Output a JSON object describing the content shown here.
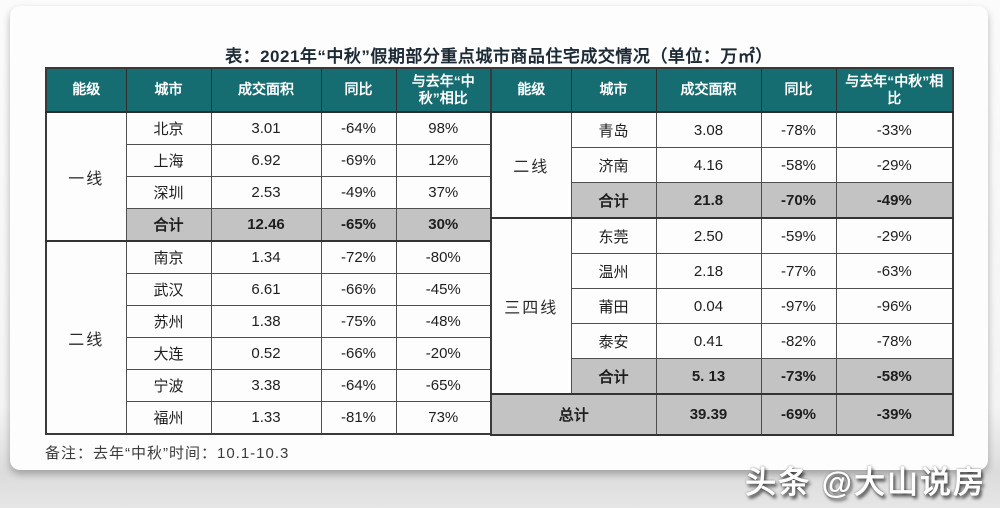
{
  "page": {
    "title": "表：2021年“中秋”假期部分重点城市商品住宅成交情况（单位：万㎡）",
    "note": "备注：去年“中秋”时间：10.1-10.3",
    "watermark": "头条 @大山说房"
  },
  "colors": {
    "header_bg": "#156d72",
    "header_text": "#ffffff",
    "total_row_bg": "#c3c3c3",
    "border": "#4f4f4f"
  },
  "table": {
    "headers": [
      "能级",
      "城市",
      "成交面积",
      "同比",
      "与去年“中秋”相比"
    ],
    "left_rows": [
      {
        "tier": "一线",
        "tier_rowspan": 4,
        "city": "北京",
        "area": "3.01",
        "yoy": "-64%",
        "vs": "98%",
        "total": false
      },
      {
        "city": "上海",
        "area": "6.92",
        "yoy": "-69%",
        "vs": "12%",
        "total": false
      },
      {
        "city": "深圳",
        "area": "2.53",
        "yoy": "-49%",
        "vs": "37%",
        "total": false
      },
      {
        "city": "合计",
        "area": "12.46",
        "yoy": "-65%",
        "vs": "30%",
        "total": true
      },
      {
        "tier": "二线",
        "tier_rowspan": 6,
        "city": "南京",
        "area": "1.34",
        "yoy": "-72%",
        "vs": "-80%",
        "total": false
      },
      {
        "city": "武汉",
        "area": "6.61",
        "yoy": "-66%",
        "vs": "-45%",
        "total": false
      },
      {
        "city": "苏州",
        "area": "1.38",
        "yoy": "-75%",
        "vs": "-48%",
        "total": false
      },
      {
        "city": "大连",
        "area": "0.52",
        "yoy": "-66%",
        "vs": "-20%",
        "total": false
      },
      {
        "city": "宁波",
        "area": "3.38",
        "yoy": "-64%",
        "vs": "-65%",
        "total": false
      },
      {
        "city": "福州",
        "area": "1.33",
        "yoy": "-81%",
        "vs": "73%",
        "total": false
      }
    ],
    "right_rows": [
      {
        "tier": "二线",
        "tier_rowspan": 3,
        "city": "青岛",
        "area": "3.08",
        "yoy": "-78%",
        "vs": "-33%",
        "total": false
      },
      {
        "city": "济南",
        "area": "4.16",
        "yoy": "-58%",
        "vs": "-29%",
        "total": false
      },
      {
        "city": "合计",
        "area": "21.8",
        "yoy": "-70%",
        "vs": "-49%",
        "total": true
      },
      {
        "tier": "三四线",
        "tier_rowspan": 5,
        "city": "东莞",
        "area": "2.50",
        "yoy": "-59%",
        "vs": "-29%",
        "total": false
      },
      {
        "city": "温州",
        "area": "2.18",
        "yoy": "-77%",
        "vs": "-63%",
        "total": false
      },
      {
        "city": "莆田",
        "area": "0.04",
        "yoy": "-97%",
        "vs": "-96%",
        "total": false
      },
      {
        "city": "泰安",
        "area": "0.41",
        "yoy": "-82%",
        "vs": "-78%",
        "total": false
      },
      {
        "city": "合计",
        "area": "5. 13",
        "yoy": "-73%",
        "vs": "-58%",
        "total": true
      },
      {
        "grand": true,
        "city": "总计",
        "area": "39.39",
        "yoy": "-69%",
        "vs": "-39%",
        "total": true
      }
    ]
  },
  "chart_data": {
    "type": "table",
    "title": "表：2021年“中秋”假期部分重点城市商品住宅成交情况（单位：万㎡）",
    "columns": [
      "能级",
      "城市",
      "成交面积",
      "同比",
      "与去年“中秋”相比"
    ],
    "rows": [
      [
        "一线",
        "北京",
        3.01,
        "-64%",
        "98%"
      ],
      [
        "一线",
        "上海",
        6.92,
        "-69%",
        "12%"
      ],
      [
        "一线",
        "深圳",
        2.53,
        "-49%",
        "37%"
      ],
      [
        "一线",
        "合计",
        12.46,
        "-65%",
        "30%"
      ],
      [
        "二线",
        "南京",
        1.34,
        "-72%",
        "-80%"
      ],
      [
        "二线",
        "武汉",
        6.61,
        "-66%",
        "-45%"
      ],
      [
        "二线",
        "苏州",
        1.38,
        "-75%",
        "-48%"
      ],
      [
        "二线",
        "大连",
        0.52,
        "-66%",
        "-20%"
      ],
      [
        "二线",
        "宁波",
        3.38,
        "-64%",
        "-65%"
      ],
      [
        "二线",
        "福州",
        1.33,
        "-81%",
        "73%"
      ],
      [
        "二线",
        "青岛",
        3.08,
        "-78%",
        "-33%"
      ],
      [
        "二线",
        "济南",
        4.16,
        "-58%",
        "-29%"
      ],
      [
        "二线",
        "合计",
        21.8,
        "-70%",
        "-49%"
      ],
      [
        "三四线",
        "东莞",
        2.5,
        "-59%",
        "-29%"
      ],
      [
        "三四线",
        "温州",
        2.18,
        "-77%",
        "-63%"
      ],
      [
        "三四线",
        "莆田",
        0.04,
        "-97%",
        "-96%"
      ],
      [
        "三四线",
        "泰安",
        0.41,
        "-82%",
        "-78%"
      ],
      [
        "三四线",
        "合计",
        5.13,
        "-73%",
        "-58%"
      ],
      [
        "总计",
        "总计",
        39.39,
        "-69%",
        "-39%"
      ]
    ],
    "note": "备注：去年“中秋”时间：10.1-10.3",
    "unit": "万㎡"
  }
}
